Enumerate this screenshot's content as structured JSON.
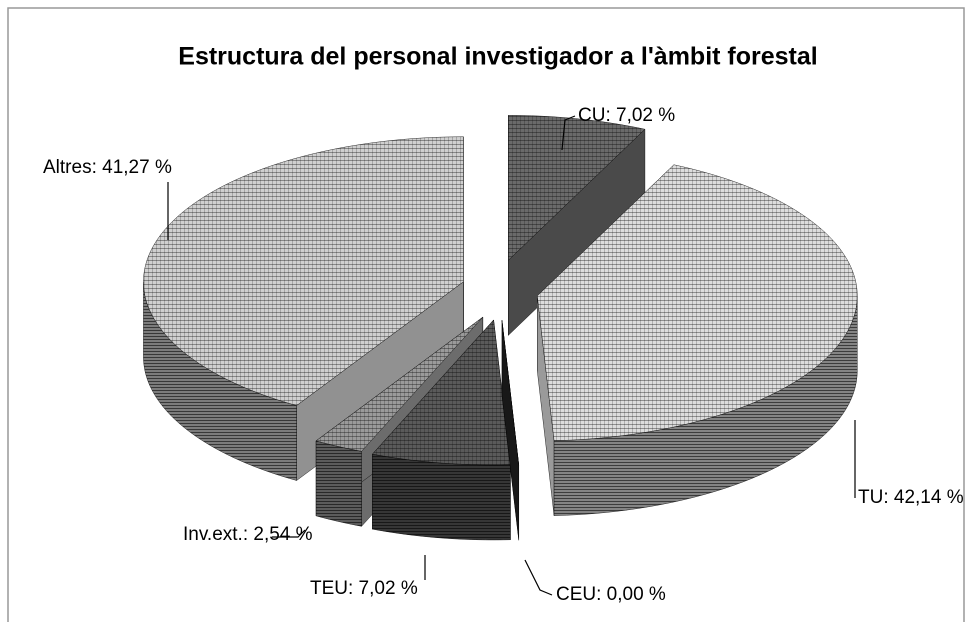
{
  "chart_data": {
    "type": "pie",
    "title": "Estructura del personal investigador a l'àmbit forestal",
    "values": [
      7.02,
      42.14,
      0.0,
      7.02,
      2.54,
      41.27
    ],
    "value_labels": [
      "CU: 7,02 %",
      "TU: 42,14 %",
      "CEU: 0,00 %",
      "TEU: 7,02 %",
      "Inv.ext.: 2,54 %",
      "Altres: 41,27 %"
    ],
    "colors": [
      "#6a6a6a",
      "#dcdcdc",
      "#222222",
      "#5a5a5a",
      "#9a9a9a",
      "#cfcfcf"
    ]
  }
}
